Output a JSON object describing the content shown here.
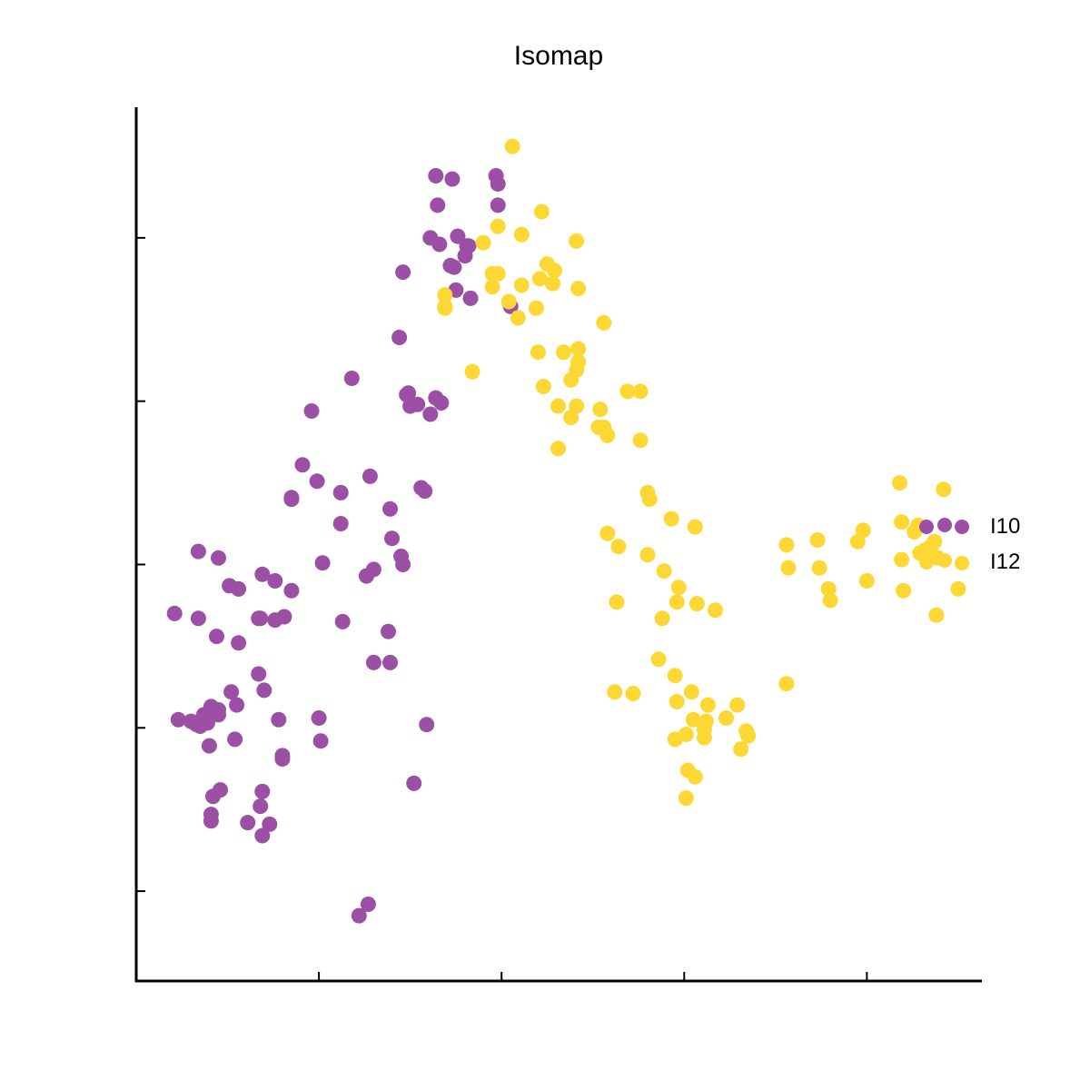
{
  "chart_data": {
    "type": "scatter",
    "title": "Isomap",
    "xlabel": "",
    "ylabel": "",
    "xlim": [
      0,
      46
    ],
    "ylim": [
      0,
      53.5
    ],
    "x_ticks": [
      0,
      10,
      20,
      30,
      40
    ],
    "y_ticks": [
      5.5,
      15.5,
      25.5,
      35.5,
      45.5
    ],
    "show_tick_labels": false,
    "grid": false,
    "legend": {
      "position": "right"
    },
    "series": [
      {
        "name": "I10",
        "color": "#9b4fa5",
        "points": [
          [
            16.4,
            49.3
          ],
          [
            17.3,
            49.1
          ],
          [
            16.5,
            47.5
          ],
          [
            18.2,
            45.0
          ],
          [
            19.7,
            49.3
          ],
          [
            18.1,
            45.0
          ],
          [
            19.8,
            48.8
          ],
          [
            18.0,
            44.4
          ],
          [
            16.6,
            45.1
          ],
          [
            14.6,
            43.4
          ],
          [
            17.6,
            45.6
          ],
          [
            16.1,
            45.5
          ],
          [
            19.8,
            47.5
          ],
          [
            17.5,
            42.3
          ],
          [
            17.4,
            43.7
          ],
          [
            17.2,
            43.8
          ],
          [
            20.5,
            41.3
          ],
          [
            18.3,
            41.8
          ],
          [
            14.4,
            39.4
          ],
          [
            14.8,
            35.9
          ],
          [
            14.9,
            36.0
          ],
          [
            15.0,
            35.2
          ],
          [
            16.7,
            35.4
          ],
          [
            16.4,
            35.7
          ],
          [
            15.4,
            35.3
          ],
          [
            16.1,
            34.7
          ],
          [
            11.8,
            36.9
          ],
          [
            9.6,
            34.9
          ],
          [
            9.1,
            31.6
          ],
          [
            12.8,
            30.9
          ],
          [
            15.6,
            30.2
          ],
          [
            15.8,
            30.0
          ],
          [
            9.9,
            30.6
          ],
          [
            8.5,
            29.6
          ],
          [
            8.5,
            29.5
          ],
          [
            11.2,
            29.9
          ],
          [
            11.2,
            28.0
          ],
          [
            13.9,
            28.9
          ],
          [
            14.0,
            27.1
          ],
          [
            14.5,
            26.0
          ],
          [
            14.6,
            25.5
          ],
          [
            13.0,
            25.2
          ],
          [
            12.6,
            24.8
          ],
          [
            10.2,
            25.6
          ],
          [
            7.6,
            24.5
          ],
          [
            6.9,
            24.9
          ],
          [
            5.6,
            24.0
          ],
          [
            3.4,
            26.3
          ],
          [
            4.5,
            25.9
          ],
          [
            5.1,
            24.2
          ],
          [
            8.5,
            23.9
          ],
          [
            8.1,
            22.3
          ],
          [
            7.6,
            22.1
          ],
          [
            6.8,
            22.2
          ],
          [
            11.3,
            22.0
          ],
          [
            13.8,
            21.4
          ],
          [
            2.1,
            22.5
          ],
          [
            3.4,
            22.2
          ],
          [
            4.4,
            21.1
          ],
          [
            6.7,
            22.2
          ],
          [
            5.6,
            20.7
          ],
          [
            13.0,
            19.5
          ],
          [
            13.9,
            19.5
          ],
          [
            6.7,
            18.8
          ],
          [
            7.0,
            17.8
          ],
          [
            5.2,
            17.7
          ],
          [
            5.5,
            16.9
          ],
          [
            4.1,
            16.8
          ],
          [
            4.3,
            16.6
          ],
          [
            4.5,
            16.6
          ],
          [
            4.5,
            16.3
          ],
          [
            3.7,
            16.3
          ],
          [
            3.6,
            16.0
          ],
          [
            2.3,
            16.0
          ],
          [
            3.0,
            15.9
          ],
          [
            3.3,
            15.7
          ],
          [
            3.5,
            15.6
          ],
          [
            3.2,
            15.8
          ],
          [
            3.9,
            15.8
          ],
          [
            7.8,
            16.0
          ],
          [
            10.0,
            16.1
          ],
          [
            15.9,
            15.7
          ],
          [
            10.1,
            14.7
          ],
          [
            5.4,
            14.8
          ],
          [
            4.0,
            14.4
          ],
          [
            8.0,
            13.8
          ],
          [
            8.0,
            13.6
          ],
          [
            15.2,
            12.1
          ],
          [
            6.9,
            11.6
          ],
          [
            4.6,
            11.7
          ],
          [
            4.2,
            11.3
          ],
          [
            4.1,
            10.2
          ],
          [
            4.1,
            9.8
          ],
          [
            6.8,
            10.7
          ],
          [
            6.1,
            9.7
          ],
          [
            7.3,
            9.6
          ],
          [
            6.9,
            8.9
          ],
          [
            12.7,
            4.7
          ],
          [
            12.2,
            4.0
          ]
        ]
      },
      {
        "name": "I12",
        "color": "#fdd834",
        "points": [
          [
            20.6,
            51.1
          ],
          [
            22.2,
            47.1
          ],
          [
            19.8,
            46.2
          ],
          [
            21.1,
            45.7
          ],
          [
            19.0,
            45.2
          ],
          [
            24.1,
            45.3
          ],
          [
            22.5,
            43.9
          ],
          [
            22.9,
            43.5
          ],
          [
            19.8,
            43.3
          ],
          [
            19.5,
            43.3
          ],
          [
            22.8,
            42.7
          ],
          [
            22.1,
            43.0
          ],
          [
            16.9,
            42.0
          ],
          [
            16.9,
            41.3
          ],
          [
            21.1,
            42.6
          ],
          [
            19.5,
            42.5
          ],
          [
            24.2,
            42.4
          ],
          [
            20.4,
            41.6
          ],
          [
            21.9,
            41.2
          ],
          [
            16.9,
            41.2
          ],
          [
            20.9,
            40.6
          ],
          [
            25.6,
            40.3
          ],
          [
            22.0,
            38.5
          ],
          [
            23.4,
            38.5
          ],
          [
            24.2,
            38.7
          ],
          [
            24.2,
            37.9
          ],
          [
            18.4,
            37.3
          ],
          [
            24.1,
            37.4
          ],
          [
            22.3,
            36.4
          ],
          [
            23.8,
            36.8
          ],
          [
            26.9,
            36.1
          ],
          [
            27.6,
            36.1
          ],
          [
            23.1,
            35.2
          ],
          [
            24.1,
            35.2
          ],
          [
            25.4,
            35.0
          ],
          [
            23.8,
            34.5
          ],
          [
            25.3,
            33.9
          ],
          [
            25.6,
            33.9
          ],
          [
            25.8,
            33.4
          ],
          [
            27.6,
            33.1
          ],
          [
            23.1,
            32.6
          ],
          [
            28.0,
            29.9
          ],
          [
            28.1,
            29.5
          ],
          [
            29.3,
            28.3
          ],
          [
            30.6,
            27.8
          ],
          [
            25.8,
            27.4
          ],
          [
            26.4,
            26.6
          ],
          [
            28.0,
            26.1
          ],
          [
            28.9,
            25.1
          ],
          [
            29.7,
            24.1
          ],
          [
            29.6,
            23.2
          ],
          [
            26.3,
            23.2
          ],
          [
            30.7,
            23.1
          ],
          [
            31.7,
            22.7
          ],
          [
            28.8,
            22.2
          ],
          [
            28.6,
            19.7
          ],
          [
            29.5,
            18.7
          ],
          [
            26.2,
            17.7
          ],
          [
            27.2,
            17.6
          ],
          [
            29.6,
            17.1
          ],
          [
            30.4,
            17.7
          ],
          [
            31.3,
            16.9
          ],
          [
            32.9,
            16.9
          ],
          [
            30.5,
            16.0
          ],
          [
            32.3,
            16.1
          ],
          [
            31.2,
            15.9
          ],
          [
            31.1,
            15.4
          ],
          [
            33.4,
            15.3
          ],
          [
            33.5,
            15.0
          ],
          [
            29.5,
            14.8
          ],
          [
            30.1,
            15.1
          ],
          [
            31.1,
            14.9
          ],
          [
            33.1,
            14.2
          ],
          [
            30.2,
            12.9
          ],
          [
            30.6,
            12.5
          ],
          [
            30.1,
            11.2
          ],
          [
            35.6,
            18.2
          ],
          [
            35.6,
            26.7
          ],
          [
            35.7,
            25.3
          ],
          [
            37.3,
            27.0
          ],
          [
            37.4,
            25.3
          ],
          [
            37.9,
            24.0
          ],
          [
            38.0,
            23.3
          ],
          [
            39.5,
            26.9
          ],
          [
            39.8,
            27.6
          ],
          [
            40.0,
            24.5
          ],
          [
            41.8,
            30.5
          ],
          [
            41.9,
            28.1
          ],
          [
            41.9,
            25.8
          ],
          [
            42.0,
            23.9
          ],
          [
            42.6,
            27.5
          ],
          [
            42.8,
            27.9
          ],
          [
            42.9,
            26.2
          ],
          [
            43.2,
            26.4
          ],
          [
            43.5,
            26.6
          ],
          [
            43.9,
            25.9
          ],
          [
            43.7,
            26.9
          ],
          [
            43.8,
            22.4
          ],
          [
            44.2,
            30.1
          ],
          [
            45.0,
            24.0
          ]
        ]
      }
    ]
  }
}
